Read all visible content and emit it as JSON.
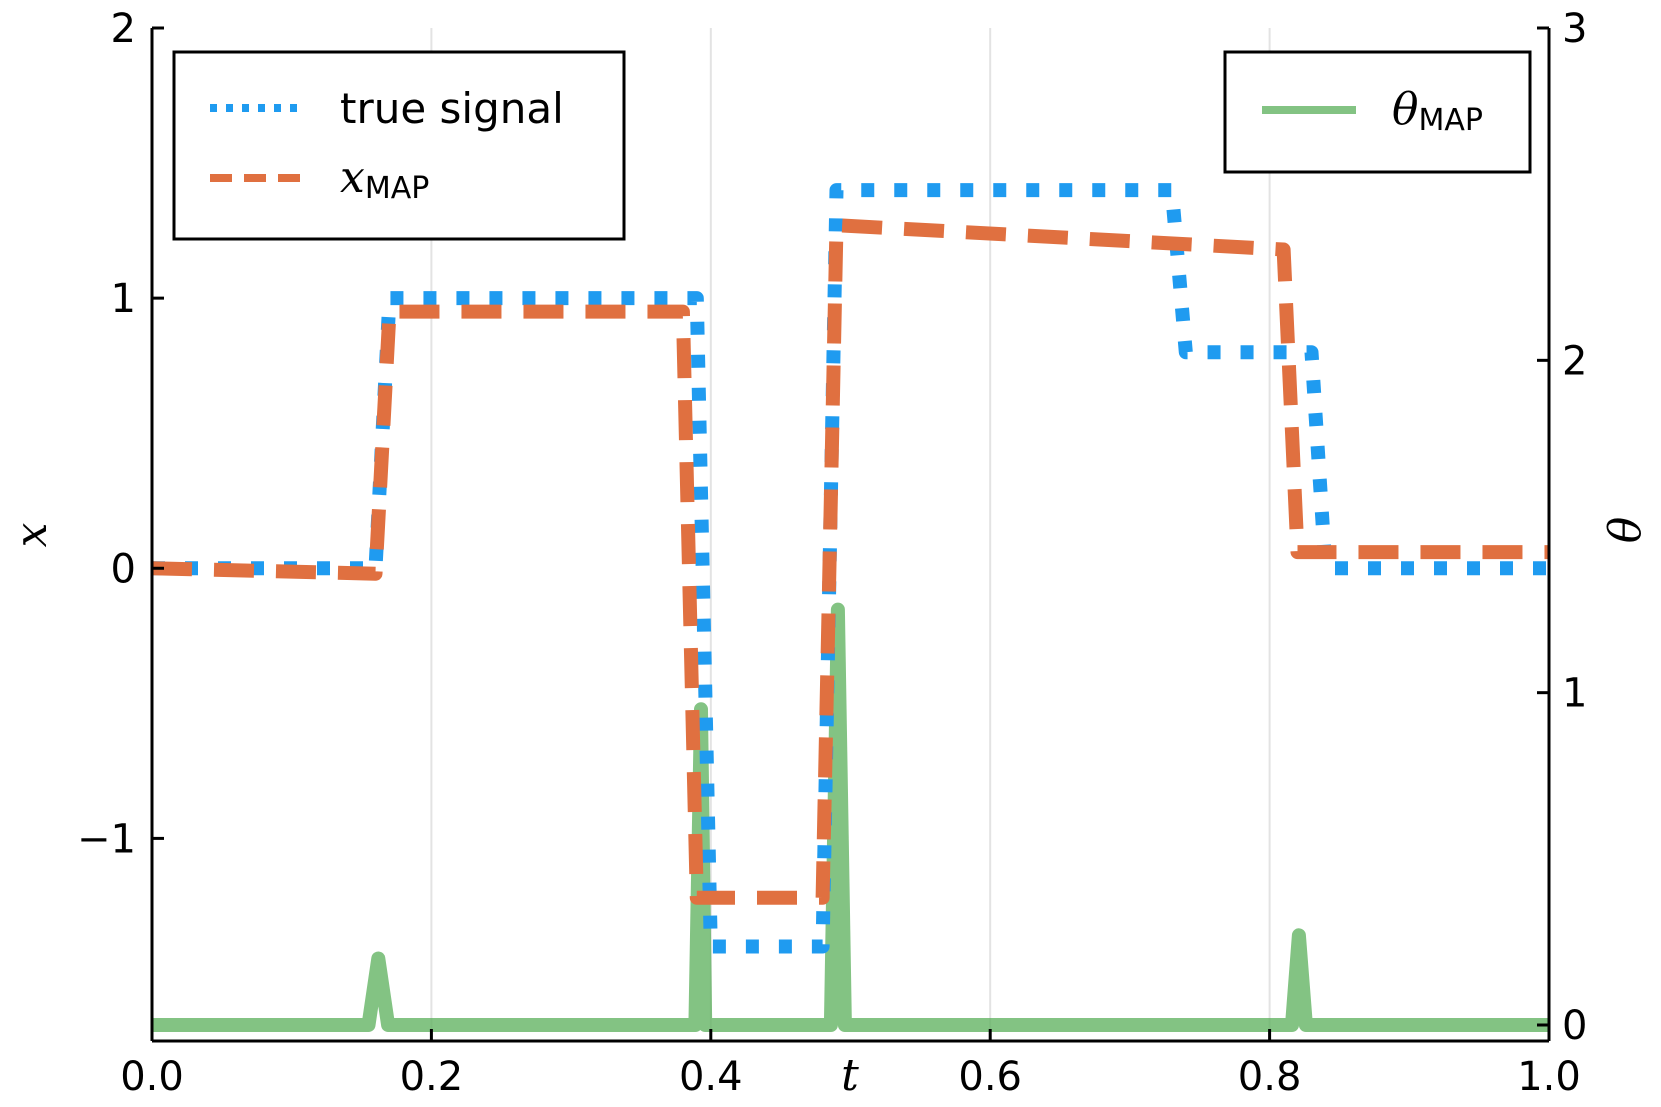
{
  "chart_data": {
    "type": "line",
    "xlabel": "t",
    "ylabel_left": "x",
    "ylabel_right": "θ",
    "xlim": [
      0.0,
      1.0
    ],
    "ylim_left": [
      -1.75,
      2.0
    ],
    "ylim_right": [
      0.0,
      3.0
    ],
    "xticks": [
      0.0,
      0.2,
      0.4,
      0.6,
      0.8,
      1.0
    ],
    "xtick_labels": [
      "0.0",
      "0.2",
      "0.4",
      "0.6",
      "0.8",
      "1.0"
    ],
    "yticks_left": [
      -1,
      0,
      1,
      2
    ],
    "ytick_labels_left": [
      "−1",
      "0",
      "1",
      "2"
    ],
    "yticks_right": [
      0,
      1,
      2,
      3
    ],
    "ytick_labels_right": [
      "0",
      "1",
      "2",
      "3"
    ],
    "grid": "vertical",
    "legend_left": {
      "placement": "top-left",
      "entries": [
        {
          "label": "true signal",
          "series": "true_signal"
        },
        {
          "label_main": "x",
          "label_sub": "MAP",
          "series": "x_map"
        }
      ]
    },
    "legend_right": {
      "placement": "top-right",
      "entries": [
        {
          "label_main": "θ",
          "label_sub": "MAP",
          "series": "theta_map"
        }
      ]
    },
    "series": [
      {
        "id": "true_signal",
        "axis": "left",
        "style": "dotted",
        "color": "#1f9bf0",
        "x": [
          0.0,
          0.16,
          0.17,
          0.39,
          0.4,
          0.48,
          0.49,
          0.73,
          0.74,
          0.83,
          0.84,
          1.0
        ],
        "y": [
          0.0,
          0.0,
          1.0,
          1.0,
          -1.4,
          -1.4,
          1.4,
          1.4,
          0.8,
          0.8,
          0.0,
          0.0
        ]
      },
      {
        "id": "x_map",
        "axis": "left",
        "style": "dashed",
        "color": "#e07040",
        "x": [
          0.0,
          0.16,
          0.17,
          0.38,
          0.39,
          0.48,
          0.49,
          0.81,
          0.82,
          1.0
        ],
        "y": [
          0.0,
          -0.02,
          0.95,
          0.95,
          -1.22,
          -1.22,
          1.27,
          1.18,
          0.06,
          0.06
        ]
      },
      {
        "id": "theta_map",
        "axis": "right",
        "style": "solid",
        "color": "#5aaf5a",
        "x": [
          0.0,
          0.155,
          0.162,
          0.169,
          0.38,
          0.389,
          0.393,
          0.396,
          0.48,
          0.486,
          0.491,
          0.496,
          0.81,
          0.816,
          0.821,
          0.826,
          1.0
        ],
        "y": [
          0.0,
          0.0,
          0.2,
          0.0,
          0.0,
          0.0,
          0.95,
          0.0,
          0.0,
          0.0,
          1.25,
          0.0,
          0.0,
          0.0,
          0.27,
          0.0,
          0.0
        ]
      }
    ]
  }
}
